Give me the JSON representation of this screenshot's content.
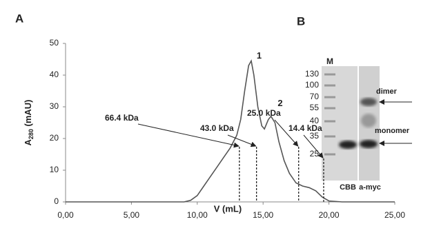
{
  "chart_data": {
    "type": "line",
    "panel_label": "A",
    "x_label": "V (mL)",
    "y_label": {
      "main": "A",
      "sub": "280",
      "unit": " (mAU)"
    },
    "xlim": [
      0,
      25
    ],
    "ylim": [
      0,
      50
    ],
    "xticks": [
      {
        "value": 0,
        "label": "0,00"
      },
      {
        "value": 5,
        "label": "5,00"
      },
      {
        "value": 10,
        "label": "10,00"
      },
      {
        "value": 15,
        "label": "15,00"
      },
      {
        "value": 20,
        "label": "20,00"
      },
      {
        "value": 25,
        "label": "25,00"
      }
    ],
    "yticks": [
      0,
      10,
      20,
      30,
      40,
      50
    ],
    "x": [
      0,
      9,
      9.5,
      10,
      10.5,
      11,
      11.5,
      12,
      12.5,
      13,
      13.3,
      13.6,
      13.9,
      14.1,
      14.3,
      14.6,
      14.9,
      15.1,
      15.4,
      15.6,
      15.9,
      16.2,
      16.6,
      17,
      17.5,
      18,
      18.5,
      19,
      19.5,
      20,
      21,
      25
    ],
    "series": [
      {
        "color": "#555555",
        "values": [
          0,
          0,
          0.5,
          2,
          5,
          8,
          11,
          14,
          17,
          21,
          26,
          35,
          43,
          44.5,
          40,
          30,
          24,
          23,
          26,
          27,
          25,
          19,
          13,
          9,
          6,
          5,
          4.5,
          3.5,
          1.5,
          0.3,
          0,
          0
        ]
      }
    ],
    "annotations": [
      {
        "text": "1",
        "x": 14.3,
        "y": 46
      },
      {
        "text": "2",
        "x": 15.9,
        "y": 31
      }
    ],
    "markers": [
      {
        "label": "66.4 kDa",
        "x": 13.2
      },
      {
        "label": "43.0 kDa",
        "x": 14.5
      },
      {
        "label": "25.0 kDa",
        "x": 17.7
      },
      {
        "label": "14.4 kDa",
        "x": 19.6
      }
    ]
  },
  "gel": {
    "panel_label": "B",
    "ladder_label": "M",
    "ladder": [
      "130",
      "100",
      "70",
      "55",
      "40",
      "35",
      "25"
    ],
    "lanes": [
      "CBB",
      "a-myc"
    ],
    "bands": [
      "dimer",
      "monomer"
    ]
  }
}
